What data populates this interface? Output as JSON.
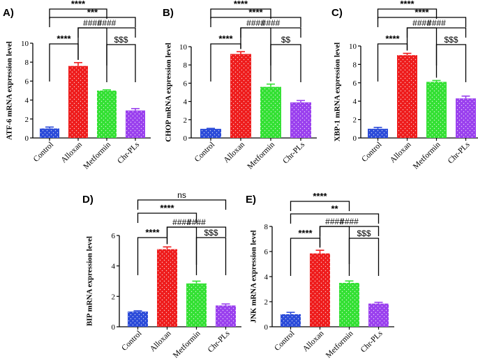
{
  "chart_data": [
    {
      "panel": "A)",
      "type": "bar",
      "ylabel": "ATF-6 mRNA expression level",
      "categories": [
        "Control",
        "Alloxan",
        "Metformin",
        "Chr-PLs"
      ],
      "values": [
        1.0,
        7.6,
        5.0,
        2.9
      ],
      "errors": [
        0.15,
        0.35,
        0.08,
        0.2
      ],
      "ylim": [
        0,
        10
      ],
      "yticks": [
        0,
        2,
        4,
        6,
        8,
        10
      ],
      "colors": [
        "#2b4bd9",
        "#ee1c1c",
        "#33e033",
        "#9a40ee"
      ],
      "comparisons": [
        {
          "from": 0,
          "to": 2,
          "label": "****"
        },
        {
          "from": 0,
          "to": 3,
          "label": "***"
        },
        {
          "from": 1,
          "to": 3,
          "label": "####"
        },
        {
          "from": 0,
          "to": 1,
          "label": "****"
        },
        {
          "from": 1,
          "to": 2,
          "label": "####"
        },
        {
          "from": 2,
          "to": 3,
          "label": "$$$"
        }
      ]
    },
    {
      "panel": "B)",
      "type": "bar",
      "ylabel": "CHOP mRNA expression level",
      "categories": [
        "Control",
        "Alloxan",
        "Metformin",
        "Chr-PLs"
      ],
      "values": [
        1.0,
        9.2,
        5.6,
        3.9
      ],
      "errors": [
        0.05,
        0.25,
        0.3,
        0.2
      ],
      "ylim": [
        0,
        10
      ],
      "yticks": [
        0,
        2,
        4,
        6,
        8,
        10
      ],
      "colors": [
        "#2b4bd9",
        "#ee1c1c",
        "#33e033",
        "#9a40ee"
      ],
      "comparisons": [
        {
          "from": 0,
          "to": 2,
          "label": "****"
        },
        {
          "from": 0,
          "to": 3,
          "label": "****"
        },
        {
          "from": 1,
          "to": 3,
          "label": "####"
        },
        {
          "from": 0,
          "to": 1,
          "label": "****"
        },
        {
          "from": 1,
          "to": 2,
          "label": "####"
        },
        {
          "from": 2,
          "to": 3,
          "label": "$$"
        }
      ]
    },
    {
      "panel": "C)",
      "type": "bar",
      "ylabel": "XBP-1 mRNA expression level",
      "categories": [
        "Control",
        "Alloxan",
        "Metformin",
        "Chr-PLs"
      ],
      "values": [
        1.0,
        9.0,
        6.1,
        4.3
      ],
      "errors": [
        0.15,
        0.2,
        0.15,
        0.25
      ],
      "ylim": [
        0,
        10
      ],
      "yticks": [
        0,
        2,
        4,
        6,
        8,
        10
      ],
      "colors": [
        "#2b4bd9",
        "#ee1c1c",
        "#33e033",
        "#9a40ee"
      ],
      "comparisons": [
        {
          "from": 0,
          "to": 2,
          "label": "****"
        },
        {
          "from": 0,
          "to": 3,
          "label": "****"
        },
        {
          "from": 1,
          "to": 3,
          "label": "####"
        },
        {
          "from": 0,
          "to": 1,
          "label": "****"
        },
        {
          "from": 1,
          "to": 2,
          "label": "####"
        },
        {
          "from": 2,
          "to": 3,
          "label": "$$$"
        }
      ]
    },
    {
      "panel": "D)",
      "type": "bar",
      "ylabel": "BIP mRNA expression level",
      "categories": [
        "Control",
        "Alloxan",
        "Metformin",
        "Chr-PLs"
      ],
      "values": [
        1.0,
        5.1,
        2.85,
        1.4
      ],
      "errors": [
        0.05,
        0.15,
        0.15,
        0.1
      ],
      "ylim": [
        0,
        6
      ],
      "yticks": [
        0,
        2,
        4,
        6
      ],
      "colors": [
        "#2b4bd9",
        "#ee1c1c",
        "#33e033",
        "#9a40ee"
      ],
      "comparisons": [
        {
          "from": 0,
          "to": 3,
          "label": "ns"
        },
        {
          "from": 0,
          "to": 2,
          "label": "****"
        },
        {
          "from": 1,
          "to": 3,
          "label": "####"
        },
        {
          "from": 0,
          "to": 1,
          "label": "****"
        },
        {
          "from": 1,
          "to": 2,
          "label": "####"
        },
        {
          "from": 2,
          "to": 3,
          "label": "$$$"
        }
      ]
    },
    {
      "panel": "E)",
      "type": "bar",
      "ylabel": "JNK mRNA expression level",
      "categories": [
        "Control",
        "Alloxan",
        "Metformin",
        "Chr-PLs"
      ],
      "values": [
        1.0,
        5.85,
        3.5,
        1.85
      ],
      "errors": [
        0.15,
        0.25,
        0.15,
        0.1
      ],
      "ylim": [
        0,
        8
      ],
      "yticks": [
        0,
        2,
        4,
        6,
        8
      ],
      "colors": [
        "#2b4bd9",
        "#ee1c1c",
        "#33e033",
        "#9a40ee"
      ],
      "comparisons": [
        {
          "from": 0,
          "to": 2,
          "label": "****"
        },
        {
          "from": 0,
          "to": 3,
          "label": "**"
        },
        {
          "from": 1,
          "to": 3,
          "label": "####"
        },
        {
          "from": 0,
          "to": 1,
          "label": "****"
        },
        {
          "from": 1,
          "to": 2,
          "label": "####"
        },
        {
          "from": 2,
          "to": 3,
          "label": "$$$"
        }
      ]
    }
  ]
}
